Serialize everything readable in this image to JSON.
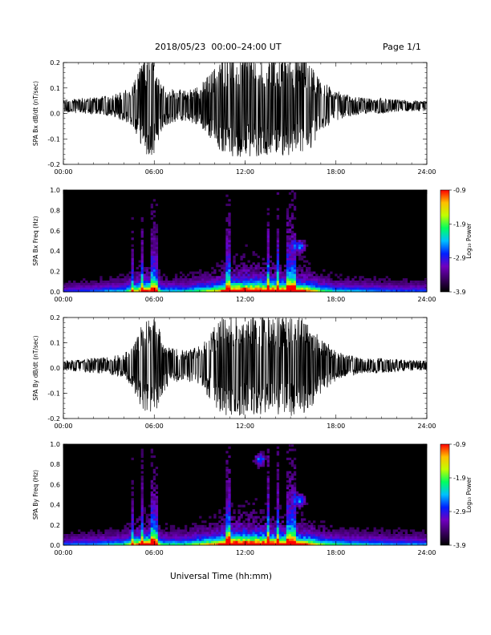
{
  "header": {
    "title": "2018/05/23  00:00–24:00 UT",
    "page": "Page 1/1"
  },
  "colors": {
    "trace": "#000000",
    "spectrogram_background": "#000000",
    "colorbar": [
      "#000000",
      "#3a0060",
      "#7000c0",
      "#0020ff",
      "#00c0ff",
      "#00ff60",
      "#c0ff00",
      "#ffc000",
      "#ff0000"
    ]
  },
  "chart_data": [
    {
      "type": "line",
      "ylabel": "SPA Bx dB/dt (nT/sec)",
      "xlim": [
        0,
        24
      ],
      "ylim": [
        -0.2,
        0.2
      ],
      "x_ticks": [
        "00:00",
        "06:00",
        "12:00",
        "18:00",
        "24:00"
      ],
      "y_ticks": [
        "-0.2",
        "-0.1",
        "0.0",
        "0.1",
        "0.2"
      ],
      "series": [
        {
          "x": [
            0,
            1,
            2,
            3,
            4,
            4.5,
            5,
            5.5,
            6,
            6.5,
            7,
            8,
            9,
            10,
            10.5,
            11,
            12,
            13,
            14,
            15,
            16,
            17,
            18,
            19,
            20,
            21,
            22,
            23,
            24
          ],
          "envelope": [
            0.025,
            0.03,
            0.035,
            0.04,
            0.06,
            0.08,
            0.14,
            0.2,
            0.2,
            0.1,
            0.07,
            0.06,
            0.08,
            0.15,
            0.2,
            0.2,
            0.2,
            0.2,
            0.2,
            0.2,
            0.2,
            0.1,
            0.06,
            0.04,
            0.03,
            0.03,
            0.025,
            0.02,
            0.02
          ],
          "baseline": [
            0.03,
            0.03,
            0.03,
            0.03,
            0.03,
            0.03,
            0.03,
            0.03,
            0.03,
            0.03,
            0.03,
            0.03,
            0.03,
            0.03,
            0.03,
            0.03,
            0.03,
            0.03,
            0.03,
            0.03,
            0.03,
            0.03,
            0.03,
            0.03,
            0.03,
            0.03,
            0.03,
            0.03,
            0.03
          ]
        }
      ]
    },
    {
      "type": "heatmap",
      "ylabel": "SPA Bx Freq (Hz)",
      "xlim": [
        0,
        24
      ],
      "ylim": [
        0,
        1.0
      ],
      "x_ticks": [
        "00:00",
        "06:00",
        "12:00",
        "18:00",
        "24:00"
      ],
      "y_ticks": [
        "0.0",
        "0.2",
        "0.4",
        "0.6",
        "0.8",
        "1.0"
      ],
      "colorbar": {
        "label": "Log₁₀ Power",
        "range": [
          -3.9,
          -0.9
        ],
        "ticks": [
          "-0.9",
          "-1.9",
          "-2.9",
          "-3.9"
        ]
      },
      "activity": {
        "hours": [
          0,
          2,
          4,
          5,
          5.5,
          6,
          6.5,
          8,
          10,
          11,
          12,
          13,
          14,
          15,
          16,
          17,
          18,
          20,
          22,
          24
        ],
        "level": [
          0.25,
          0.3,
          0.4,
          0.7,
          0.8,
          0.75,
          0.4,
          0.4,
          0.6,
          0.85,
          0.95,
          0.9,
          0.9,
          0.85,
          0.75,
          0.5,
          0.4,
          0.35,
          0.3,
          0.3
        ]
      },
      "vertical_streaks_hours": [
        4.6,
        5.2,
        5.9,
        6.0,
        6.1,
        10.9,
        13.5,
        14.2,
        14.9,
        15.2
      ],
      "blobs": [
        {
          "t": 15.6,
          "f": 0.45
        }
      ]
    },
    {
      "type": "line",
      "ylabel": "SPA By dB/dt (nT/sec)",
      "xlim": [
        0,
        24
      ],
      "ylim": [
        -0.2,
        0.2
      ],
      "x_ticks": [
        "00:00",
        "06:00",
        "12:00",
        "18:00",
        "24:00"
      ],
      "y_ticks": [
        "-0.2",
        "-0.1",
        "0.0",
        "0.1",
        "0.2"
      ],
      "series": [
        {
          "x": [
            0,
            1,
            2,
            3,
            4,
            4.5,
            5,
            5.5,
            6,
            6.5,
            7,
            8,
            9,
            10,
            10.5,
            11,
            12,
            13,
            14,
            15,
            16,
            17,
            18,
            19,
            20,
            21,
            22,
            23,
            24
          ],
          "envelope": [
            0.02,
            0.025,
            0.03,
            0.035,
            0.05,
            0.08,
            0.15,
            0.2,
            0.2,
            0.12,
            0.07,
            0.06,
            0.08,
            0.16,
            0.2,
            0.2,
            0.2,
            0.2,
            0.2,
            0.2,
            0.2,
            0.11,
            0.06,
            0.04,
            0.03,
            0.03,
            0.025,
            0.02,
            0.02
          ],
          "baseline": [
            0.01,
            0.01,
            0.01,
            0.01,
            0.01,
            0.01,
            0.01,
            0.01,
            0.01,
            0.01,
            0.01,
            0.01,
            0.01,
            0.01,
            0.01,
            0.01,
            0.01,
            0.01,
            0.01,
            0.01,
            0.01,
            0.01,
            0.01,
            0.01,
            0.01,
            0.01,
            0.01,
            0.01,
            0.01
          ]
        }
      ]
    },
    {
      "type": "heatmap",
      "ylabel": "SPA By Freq (Hz)",
      "xlabel": "Universal Time (hh:mm)",
      "xlim": [
        0,
        24
      ],
      "ylim": [
        0,
        1.0
      ],
      "x_ticks": [
        "00:00",
        "06:00",
        "12:00",
        "18:00",
        "24:00"
      ],
      "y_ticks": [
        "0.0",
        "0.2",
        "0.4",
        "0.6",
        "0.8",
        "1.0"
      ],
      "colorbar": {
        "label": "Log₁₀ Power",
        "range": [
          -3.9,
          -0.9
        ],
        "ticks": [
          "-0.9",
          "-1.9",
          "-2.9",
          "-3.9"
        ]
      },
      "activity": {
        "hours": [
          0,
          2,
          4,
          5,
          5.5,
          6,
          6.5,
          8,
          10,
          11,
          12,
          13,
          14,
          15,
          16,
          17,
          18,
          20,
          22,
          24
        ],
        "level": [
          0.3,
          0.35,
          0.45,
          0.75,
          0.85,
          0.8,
          0.45,
          0.45,
          0.7,
          0.95,
          1.0,
          0.95,
          0.9,
          0.85,
          0.75,
          0.55,
          0.45,
          0.4,
          0.35,
          0.35
        ]
      },
      "vertical_streaks_hours": [
        4.6,
        5.2,
        5.9,
        6.0,
        6.1,
        10.9,
        13.5,
        14.2,
        14.9,
        15.2
      ],
      "blobs": [
        {
          "t": 13.0,
          "f": 0.85
        },
        {
          "t": 15.6,
          "f": 0.45
        }
      ]
    }
  ]
}
